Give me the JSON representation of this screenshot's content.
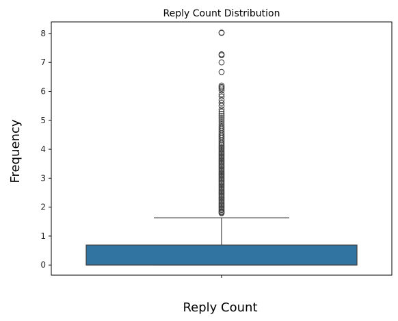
{
  "chart_data": {
    "type": "box",
    "title": "Reply Count Distribution",
    "xlabel": "Reply Count",
    "ylabel": "Frequency",
    "ylim": [
      -0.35,
      8.4
    ],
    "yticks": [
      "0",
      "1",
      "2",
      "3",
      "4",
      "5",
      "6",
      "7",
      "8"
    ],
    "grid": false,
    "box": {
      "q1": 0.0,
      "median": 0.0,
      "q3": 0.69,
      "whisker_low": 0.0,
      "whisker_high": 1.63
    },
    "outliers": [
      1.79,
      1.82,
      1.85,
      1.9,
      1.95,
      2.0,
      2.05,
      2.1,
      2.15,
      2.2,
      2.25,
      2.3,
      2.35,
      2.4,
      2.45,
      2.5,
      2.55,
      2.6,
      2.65,
      2.7,
      2.75,
      2.8,
      2.85,
      2.9,
      2.95,
      3.0,
      3.05,
      3.1,
      3.15,
      3.2,
      3.25,
      3.3,
      3.35,
      3.4,
      3.45,
      3.5,
      3.55,
      3.6,
      3.65,
      3.7,
      3.75,
      3.8,
      3.85,
      3.9,
      3.95,
      4.0,
      4.05,
      4.1,
      4.15,
      4.2,
      4.26,
      4.32,
      4.38,
      4.44,
      4.5,
      4.56,
      4.62,
      4.68,
      4.74,
      4.8,
      4.87,
      4.94,
      5.01,
      5.08,
      5.15,
      5.22,
      5.3,
      5.38,
      5.5,
      5.6,
      5.7,
      5.82,
      5.9,
      6.03,
      6.1,
      6.15,
      6.2,
      6.67,
      7.0,
      7.25,
      7.28,
      8.02,
      8.03
    ],
    "colors": {
      "box_fill": "#3274a1",
      "line": "#3f3f3f",
      "axis": "#000000"
    }
  }
}
